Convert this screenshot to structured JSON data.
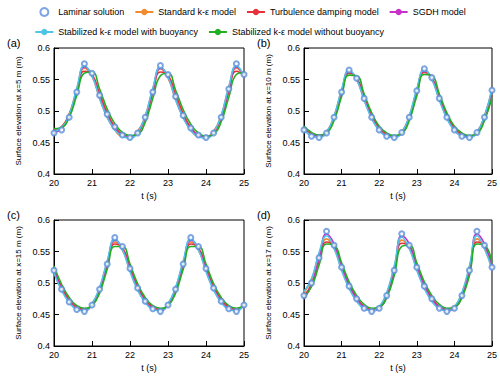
{
  "chart_data": [
    {
      "type": "line",
      "title": "(a)",
      "x_label": "t (s)",
      "y_label": "Surface elevation at x=5 m (m)",
      "xlim": [
        20,
        25
      ],
      "xticks": [
        20,
        21,
        22,
        23,
        24,
        25
      ],
      "ylim": [
        0.4,
        0.6
      ],
      "yticks": [
        0.4,
        0.45,
        0.5,
        0.55,
        0.6
      ],
      "grid": false,
      "legend": "top",
      "x": [
        20,
        20.2,
        20.4,
        20.6,
        20.8,
        21,
        21.2,
        21.4,
        21.6,
        21.8,
        22,
        22.2,
        22.4,
        22.6,
        22.8,
        23,
        23.2,
        23.4,
        23.6,
        23.8,
        24,
        24.2,
        24.4,
        24.6,
        24.8,
        25
      ],
      "series": [
        {
          "name": "Laminar solution",
          "type": "scatter",
          "marker": "circle",
          "color": "#5b8fd9",
          "values": [
            0.465,
            0.47,
            0.49,
            0.53,
            0.575,
            0.56,
            0.525,
            0.495,
            0.475,
            0.462,
            0.458,
            0.465,
            0.49,
            0.53,
            0.572,
            0.558,
            0.523,
            0.493,
            0.473,
            0.462,
            0.458,
            0.465,
            0.49,
            0.535,
            0.575,
            0.558
          ]
        },
        {
          "name": "Standard k-ε model",
          "type": "line",
          "color": "#f28a30",
          "values": [
            0.47,
            0.475,
            0.495,
            0.535,
            0.568,
            0.555,
            0.52,
            0.49,
            0.47,
            0.46,
            0.46,
            0.468,
            0.492,
            0.535,
            0.567,
            0.552,
            0.518,
            0.49,
            0.47,
            0.46,
            0.46,
            0.468,
            0.493,
            0.538,
            0.568,
            0.553
          ]
        },
        {
          "name": "Turbulence damping model",
          "type": "line",
          "color": "#e8303a",
          "values": [
            0.47,
            0.475,
            0.495,
            0.53,
            0.563,
            0.558,
            0.528,
            0.497,
            0.475,
            0.463,
            0.46,
            0.465,
            0.488,
            0.528,
            0.562,
            0.557,
            0.527,
            0.496,
            0.474,
            0.462,
            0.459,
            0.465,
            0.488,
            0.53,
            0.563,
            0.557
          ]
        },
        {
          "name": "SGDH model",
          "type": "line",
          "color": "#c832c8",
          "values": [
            0.466,
            0.472,
            0.492,
            0.532,
            0.57,
            0.557,
            0.522,
            0.492,
            0.472,
            0.461,
            0.458,
            0.466,
            0.49,
            0.532,
            0.568,
            0.555,
            0.52,
            0.49,
            0.471,
            0.461,
            0.458,
            0.466,
            0.491,
            0.534,
            0.57,
            0.556
          ]
        },
        {
          "name": "Stabilized k-ε model with buoyancy",
          "type": "line",
          "color": "#4fc3e8",
          "values": [
            0.468,
            0.474,
            0.494,
            0.536,
            0.572,
            0.556,
            0.52,
            0.49,
            0.47,
            0.46,
            0.457,
            0.466,
            0.492,
            0.536,
            0.57,
            0.554,
            0.518,
            0.489,
            0.469,
            0.459,
            0.457,
            0.466,
            0.493,
            0.538,
            0.572,
            0.555
          ]
        },
        {
          "name": "Stabilized k-ε model without buoyancy",
          "type": "line",
          "color": "#22b022",
          "values": [
            0.472,
            0.474,
            0.49,
            0.525,
            0.56,
            0.562,
            0.535,
            0.503,
            0.48,
            0.466,
            0.461,
            0.463,
            0.482,
            0.52,
            0.556,
            0.56,
            0.533,
            0.502,
            0.479,
            0.465,
            0.46,
            0.463,
            0.483,
            0.522,
            0.558,
            0.561
          ]
        }
      ]
    },
    {
      "type": "line",
      "title": "(b)",
      "x_label": "t (s)",
      "y_label": "Surface elevation at x=10 m (m)",
      "xlim": [
        20,
        25
      ],
      "xticks": [
        20,
        21,
        22,
        23,
        24,
        25
      ],
      "ylim": [
        0.4,
        0.6
      ],
      "yticks": [
        0.4,
        0.45,
        0.5,
        0.55,
        0.6
      ],
      "grid": false,
      "x": [
        20,
        20.2,
        20.4,
        20.6,
        20.8,
        21,
        21.2,
        21.4,
        21.6,
        21.8,
        22,
        22.2,
        22.4,
        22.6,
        22.8,
        23,
        23.2,
        23.4,
        23.6,
        23.8,
        24,
        24.2,
        24.4,
        24.6,
        24.8,
        25
      ],
      "series": [
        {
          "name": "Laminar solution",
          "type": "scatter",
          "marker": "circle",
          "color": "#5b8fd9",
          "values": [
            0.47,
            0.46,
            0.458,
            0.465,
            0.49,
            0.53,
            0.565,
            0.552,
            0.52,
            0.49,
            0.47,
            0.46,
            0.458,
            0.466,
            0.49,
            0.532,
            0.567,
            0.553,
            0.52,
            0.49,
            0.47,
            0.46,
            0.458,
            0.466,
            0.49,
            0.533
          ]
        },
        {
          "name": "Standard k-ε model",
          "type": "line",
          "color": "#f28a30",
          "values": [
            0.472,
            0.463,
            0.46,
            0.467,
            0.492,
            0.532,
            0.562,
            0.55,
            0.518,
            0.49,
            0.471,
            0.462,
            0.46,
            0.467,
            0.492,
            0.533,
            0.563,
            0.55,
            0.518,
            0.49,
            0.471,
            0.462,
            0.46,
            0.467,
            0.492,
            0.534
          ]
        },
        {
          "name": "Turbulence damping model",
          "type": "line",
          "color": "#e8303a",
          "values": [
            0.474,
            0.464,
            0.46,
            0.465,
            0.488,
            0.527,
            0.56,
            0.553,
            0.523,
            0.494,
            0.474,
            0.463,
            0.46,
            0.465,
            0.488,
            0.528,
            0.561,
            0.553,
            0.523,
            0.494,
            0.474,
            0.463,
            0.46,
            0.465,
            0.486,
            0.525
          ]
        },
        {
          "name": "SGDH model",
          "type": "line",
          "color": "#c832c8",
          "values": [
            0.471,
            0.461,
            0.459,
            0.466,
            0.491,
            0.531,
            0.564,
            0.551,
            0.519,
            0.49,
            0.47,
            0.461,
            0.459,
            0.466,
            0.491,
            0.532,
            0.565,
            0.552,
            0.519,
            0.49,
            0.47,
            0.461,
            0.459,
            0.466,
            0.491,
            0.533
          ]
        },
        {
          "name": "Stabilized k-ε model with buoyancy",
          "type": "line",
          "color": "#4fc3e8",
          "values": [
            0.47,
            0.461,
            0.458,
            0.466,
            0.492,
            0.534,
            0.565,
            0.55,
            0.517,
            0.488,
            0.469,
            0.46,
            0.458,
            0.466,
            0.492,
            0.535,
            0.566,
            0.55,
            0.517,
            0.488,
            0.469,
            0.46,
            0.458,
            0.466,
            0.492,
            0.536
          ]
        },
        {
          "name": "Stabilized k-ε model without buoyancy",
          "type": "line",
          "color": "#22b022",
          "values": [
            0.476,
            0.466,
            0.462,
            0.465,
            0.485,
            0.523,
            0.557,
            0.556,
            0.527,
            0.497,
            0.476,
            0.465,
            0.461,
            0.464,
            0.485,
            0.524,
            0.558,
            0.556,
            0.527,
            0.497,
            0.476,
            0.465,
            0.461,
            0.464,
            0.485,
            0.522
          ]
        }
      ]
    },
    {
      "type": "line",
      "title": "(c)",
      "x_label": "t (s)",
      "y_label": "Surface elevation at x=15 m (m)",
      "xlim": [
        20,
        25
      ],
      "xticks": [
        20,
        21,
        22,
        23,
        24,
        25
      ],
      "ylim": [
        0.4,
        0.6
      ],
      "yticks": [
        0.4,
        0.45,
        0.5,
        0.55,
        0.6
      ],
      "grid": false,
      "x": [
        20,
        20.2,
        20.4,
        20.6,
        20.8,
        21,
        21.2,
        21.4,
        21.6,
        21.8,
        22,
        22.2,
        22.4,
        22.6,
        22.8,
        23,
        23.2,
        23.4,
        23.6,
        23.8,
        24,
        24.2,
        24.4,
        24.6,
        24.8,
        25
      ],
      "series": [
        {
          "name": "Laminar solution",
          "type": "scatter",
          "marker": "circle",
          "color": "#5b8fd9",
          "values": [
            0.52,
            0.49,
            0.47,
            0.458,
            0.455,
            0.465,
            0.49,
            0.53,
            0.572,
            0.558,
            0.523,
            0.492,
            0.471,
            0.459,
            0.455,
            0.465,
            0.49,
            0.53,
            0.572,
            0.558,
            0.523,
            0.492,
            0.471,
            0.459,
            0.455,
            0.465
          ]
        },
        {
          "name": "Standard k-ε model",
          "type": "line",
          "color": "#f28a30",
          "values": [
            0.518,
            0.49,
            0.471,
            0.46,
            0.458,
            0.467,
            0.492,
            0.533,
            0.565,
            0.552,
            0.52,
            0.49,
            0.47,
            0.46,
            0.458,
            0.467,
            0.492,
            0.533,
            0.565,
            0.552,
            0.52,
            0.49,
            0.47,
            0.46,
            0.458,
            0.467
          ]
        },
        {
          "name": "Turbulence damping model",
          "type": "line",
          "color": "#e8303a",
          "values": [
            0.522,
            0.494,
            0.474,
            0.462,
            0.458,
            0.465,
            0.488,
            0.527,
            0.562,
            0.556,
            0.526,
            0.495,
            0.474,
            0.462,
            0.458,
            0.465,
            0.488,
            0.527,
            0.562,
            0.556,
            0.526,
            0.495,
            0.474,
            0.462,
            0.458,
            0.466
          ]
        },
        {
          "name": "SGDH model",
          "type": "line",
          "color": "#c832c8",
          "values": [
            0.52,
            0.49,
            0.47,
            0.459,
            0.456,
            0.466,
            0.491,
            0.531,
            0.568,
            0.555,
            0.521,
            0.491,
            0.47,
            0.459,
            0.456,
            0.466,
            0.491,
            0.531,
            0.568,
            0.555,
            0.521,
            0.491,
            0.47,
            0.459,
            0.456,
            0.466
          ]
        },
        {
          "name": "Stabilized k-ε model with buoyancy",
          "type": "line",
          "color": "#4fc3e8",
          "values": [
            0.516,
            0.488,
            0.469,
            0.458,
            0.456,
            0.467,
            0.493,
            0.535,
            0.57,
            0.553,
            0.518,
            0.489,
            0.469,
            0.458,
            0.456,
            0.467,
            0.493,
            0.535,
            0.57,
            0.553,
            0.518,
            0.489,
            0.469,
            0.458,
            0.456,
            0.467
          ]
        },
        {
          "name": "Stabilized k-ε model without buoyancy",
          "type": "line",
          "color": "#22b022",
          "values": [
            0.527,
            0.498,
            0.477,
            0.464,
            0.46,
            0.464,
            0.484,
            0.522,
            0.558,
            0.558,
            0.53,
            0.499,
            0.477,
            0.464,
            0.46,
            0.464,
            0.484,
            0.522,
            0.558,
            0.558,
            0.53,
            0.499,
            0.477,
            0.464,
            0.46,
            0.464
          ]
        }
      ]
    },
    {
      "type": "line",
      "title": "(d)",
      "x_label": "t (s)",
      "y_label": "Surface elevation at x=17 m (m)",
      "xlim": [
        20,
        25
      ],
      "xticks": [
        20,
        21,
        22,
        23,
        24,
        25
      ],
      "ylim": [
        0.4,
        0.6
      ],
      "yticks": [
        0.4,
        0.45,
        0.5,
        0.55,
        0.6
      ],
      "grid": false,
      "x": [
        20,
        20.2,
        20.4,
        20.6,
        20.8,
        21,
        21.2,
        21.4,
        21.6,
        21.8,
        22,
        22.2,
        22.4,
        22.6,
        22.8,
        23,
        23.2,
        23.4,
        23.6,
        23.8,
        24,
        24.2,
        24.4,
        24.6,
        24.8,
        25
      ],
      "series": [
        {
          "name": "Laminar solution",
          "type": "scatter",
          "marker": "circle",
          "color": "#5b8fd9",
          "values": [
            0.48,
            0.5,
            0.54,
            0.582,
            0.56,
            0.525,
            0.495,
            0.475,
            0.46,
            0.455,
            0.46,
            0.48,
            0.52,
            0.578,
            0.56,
            0.525,
            0.495,
            0.475,
            0.46,
            0.455,
            0.46,
            0.48,
            0.52,
            0.582,
            0.56,
            0.525
          ]
        },
        {
          "name": "Standard k-ε model",
          "type": "line",
          "color": "#f28a30",
          "values": [
            0.485,
            0.505,
            0.545,
            0.57,
            0.555,
            0.522,
            0.493,
            0.473,
            0.46,
            0.457,
            0.462,
            0.483,
            0.525,
            0.568,
            0.555,
            0.522,
            0.493,
            0.473,
            0.46,
            0.457,
            0.462,
            0.483,
            0.525,
            0.57,
            0.555,
            0.522
          ]
        },
        {
          "name": "Turbulence damping model",
          "type": "line",
          "color": "#e8303a",
          "values": [
            0.48,
            0.498,
            0.535,
            0.565,
            0.558,
            0.528,
            0.498,
            0.477,
            0.463,
            0.458,
            0.461,
            0.479,
            0.517,
            0.563,
            0.558,
            0.528,
            0.498,
            0.477,
            0.463,
            0.458,
            0.461,
            0.479,
            0.517,
            0.565,
            0.558,
            0.528
          ]
        },
        {
          "name": "SGDH model",
          "type": "line",
          "color": "#c832c8",
          "values": [
            0.475,
            0.497,
            0.538,
            0.578,
            0.562,
            0.527,
            0.496,
            0.475,
            0.461,
            0.456,
            0.46,
            0.478,
            0.518,
            0.575,
            0.562,
            0.527,
            0.496,
            0.475,
            0.461,
            0.456,
            0.46,
            0.478,
            0.518,
            0.578,
            0.562,
            0.527
          ]
        },
        {
          "name": "Stabilized k-ε model with buoyancy",
          "type": "line",
          "color": "#4fc3e8",
          "values": [
            0.487,
            0.507,
            0.548,
            0.575,
            0.555,
            0.52,
            0.491,
            0.471,
            0.459,
            0.456,
            0.462,
            0.485,
            0.527,
            0.573,
            0.555,
            0.52,
            0.491,
            0.471,
            0.459,
            0.456,
            0.462,
            0.485,
            0.527,
            0.575,
            0.555,
            0.52
          ]
        },
        {
          "name": "Stabilized k-ε model without buoyancy",
          "type": "line",
          "color": "#22b022",
          "values": [
            0.478,
            0.494,
            0.528,
            0.562,
            0.56,
            0.532,
            0.502,
            0.48,
            0.466,
            0.46,
            0.462,
            0.477,
            0.512,
            0.558,
            0.56,
            0.532,
            0.502,
            0.48,
            0.466,
            0.46,
            0.462,
            0.477,
            0.512,
            0.562,
            0.56,
            0.532
          ]
        }
      ]
    }
  ]
}
